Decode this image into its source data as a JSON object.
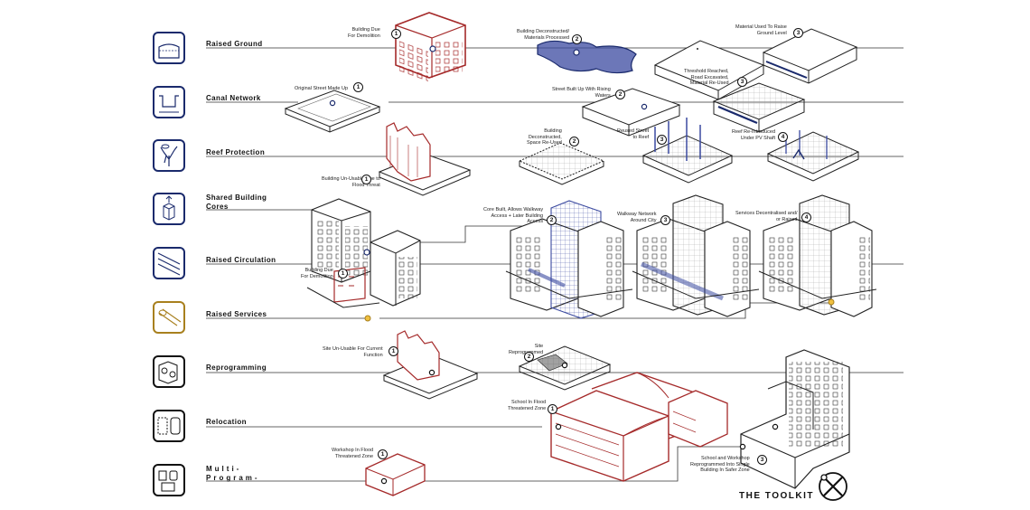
{
  "title": "THE TOOLKIT",
  "colors": {
    "blue": "#1a2a6c",
    "red": "#a52a2a",
    "gold": "#a8801e",
    "line": "#222222",
    "shade": "#3b4aa0"
  },
  "strategies": [
    {
      "label": "Raised Ground",
      "icon": "raised-ground-icon",
      "color": "#1a2a6c"
    },
    {
      "label": "Canal Network",
      "icon": "canal-network-icon",
      "color": "#1a2a6c"
    },
    {
      "label": "Reef Protection",
      "icon": "reef-protection-icon",
      "color": "#1a2a6c"
    },
    {
      "label": "Shared Building\nCores",
      "icon": "shared-core-icon",
      "color": "#1a2a6c"
    },
    {
      "label": "Raised Circulation",
      "icon": "raised-circulation-icon",
      "color": "#1a2a6c"
    },
    {
      "label": "Raised Services",
      "icon": "raised-services-icon",
      "color": "#a8801e"
    },
    {
      "label": "Reprogramming",
      "icon": "reprogramming-icon",
      "color": "#111111"
    },
    {
      "label": "Relocation",
      "icon": "relocation-icon",
      "color": "#111111"
    },
    {
      "label": "Multi-\nProgram-",
      "icon": "multi-program-icon",
      "color": "#111111"
    }
  ],
  "annotations": [
    {
      "text": "Building Due\nFor Demolition",
      "num": "1"
    },
    {
      "text": "Building Deconstructed/\nMaterials Processed",
      "num": "2"
    },
    {
      "text": "Material Used To Raise\nGround Level",
      "num": "3"
    },
    {
      "text": "Original Street Made Up",
      "num": "1"
    },
    {
      "text": "Street Built Up With Rising\nWaters",
      "num": "2"
    },
    {
      "text": "Threshold Reached,\nRoad Excavated,\nMaterial Re-Used",
      "num": "3"
    },
    {
      "text": "Building Un-Usable Due to\nFlood Threat",
      "num": "1"
    },
    {
      "text": "Building\nDeconstructed,\nSpace Re-Used",
      "num": "2"
    },
    {
      "text": "Reused Street\nto Reef",
      "num": "3"
    },
    {
      "text": "Reef Re-Introduced\nUnder PV Shaft",
      "num": "4"
    },
    {
      "text": "Building Due\nFor Demolition",
      "num": "1"
    },
    {
      "text": "Core Built, Allows Walkway\nAccess + Later Building\nAccess",
      "num": "2"
    },
    {
      "text": "Walkway Network\nAround City",
      "num": "3"
    },
    {
      "text": "Services Decentralised and/\nor Raised",
      "num": "4"
    },
    {
      "text": "Site Un-Usable For Current\nFunction",
      "num": "1"
    },
    {
      "text": "Site\nReprogrammed",
      "num": "2"
    },
    {
      "text": "School In Flood\nThreatened Zone",
      "num": "1"
    },
    {
      "text": "Workshop In Flood\nThreatened Zone",
      "num": "1"
    },
    {
      "text": "School and Workshop\nReprogrammed Into Single\nBuilding In Safer Zone",
      "num": "3"
    }
  ]
}
